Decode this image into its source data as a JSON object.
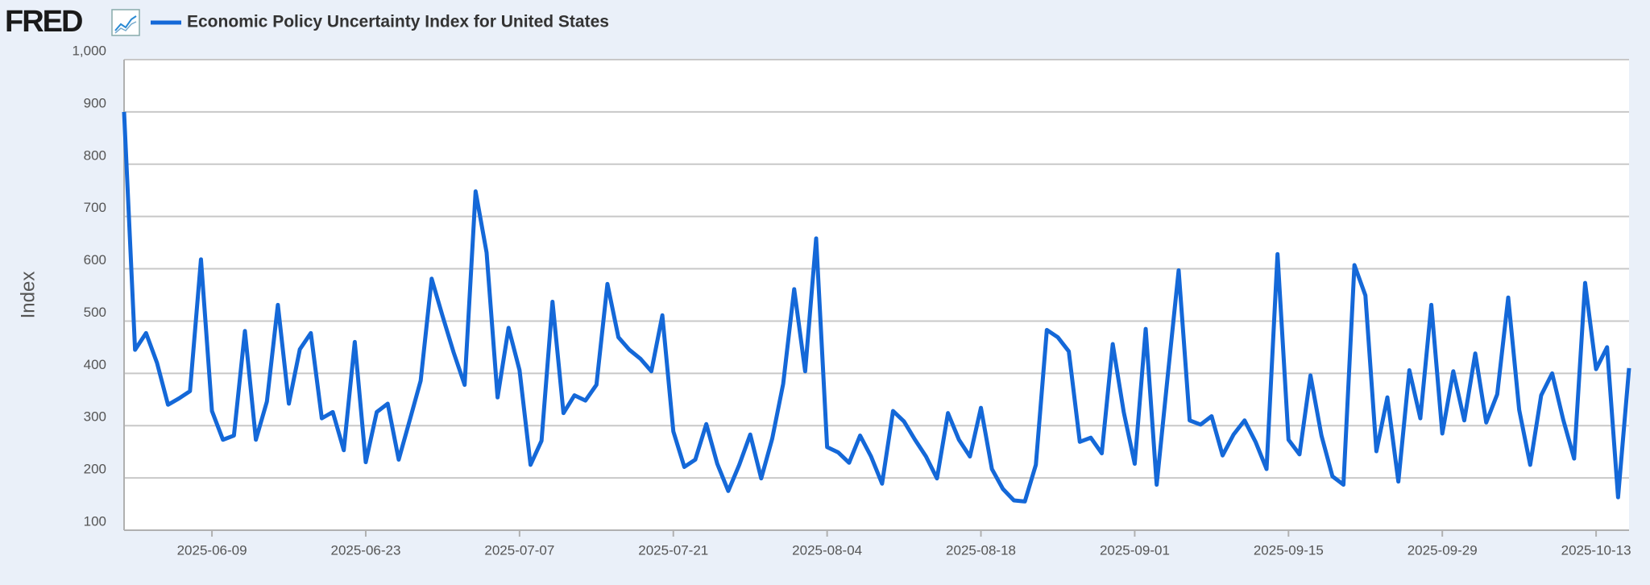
{
  "logo": "FRED",
  "chart_data": {
    "type": "line",
    "title": "Economic Policy Uncertainty Index for United States",
    "y_label": "Index",
    "x": [
      "2025-06-01",
      "2025-06-02",
      "2025-06-03",
      "2025-06-04",
      "2025-06-05",
      "2025-06-06",
      "2025-06-07",
      "2025-06-08",
      "2025-06-09",
      "2025-06-10",
      "2025-06-11",
      "2025-06-12",
      "2025-06-13",
      "2025-06-14",
      "2025-06-15",
      "2025-06-16",
      "2025-06-17",
      "2025-06-18",
      "2025-06-19",
      "2025-06-20",
      "2025-06-21",
      "2025-06-22",
      "2025-06-23",
      "2025-06-24",
      "2025-06-25",
      "2025-06-26",
      "2025-06-27",
      "2025-06-28",
      "2025-06-29",
      "2025-06-30",
      "2025-07-01",
      "2025-07-02",
      "2025-07-03",
      "2025-07-04",
      "2025-07-05",
      "2025-07-06",
      "2025-07-07",
      "2025-07-08",
      "2025-07-09",
      "2025-07-10",
      "2025-07-11",
      "2025-07-12",
      "2025-07-13",
      "2025-07-14",
      "2025-07-15",
      "2025-07-16",
      "2025-07-17",
      "2025-07-18",
      "2025-07-19",
      "2025-07-20",
      "2025-07-21",
      "2025-07-22",
      "2025-07-23",
      "2025-07-24",
      "2025-07-25",
      "2025-07-26",
      "2025-07-27",
      "2025-07-28",
      "2025-07-29",
      "2025-07-30",
      "2025-07-31",
      "2025-08-01",
      "2025-08-02",
      "2025-08-03",
      "2025-08-04",
      "2025-08-05",
      "2025-08-06",
      "2025-08-07",
      "2025-08-08",
      "2025-08-09",
      "2025-08-10",
      "2025-08-11",
      "2025-08-12",
      "2025-08-13",
      "2025-08-14",
      "2025-08-15",
      "2025-08-16",
      "2025-08-17",
      "2025-08-18",
      "2025-08-19",
      "2025-08-20",
      "2025-08-21",
      "2025-08-22",
      "2025-08-23",
      "2025-08-24",
      "2025-08-25",
      "2025-08-26",
      "2025-08-27",
      "2025-08-28",
      "2025-08-29",
      "2025-08-30",
      "2025-08-31",
      "2025-09-01",
      "2025-09-02",
      "2025-09-03",
      "2025-09-04",
      "2025-09-05",
      "2025-09-06",
      "2025-09-07",
      "2025-09-08",
      "2025-09-09",
      "2025-09-10",
      "2025-09-11",
      "2025-09-12",
      "2025-09-13",
      "2025-09-14",
      "2025-09-15",
      "2025-09-16",
      "2025-09-17",
      "2025-09-18",
      "2025-09-19",
      "2025-09-20",
      "2025-09-21",
      "2025-09-22",
      "2025-09-23",
      "2025-09-24",
      "2025-09-25",
      "2025-09-26",
      "2025-09-27",
      "2025-09-28",
      "2025-09-29",
      "2025-09-30",
      "2025-10-01",
      "2025-10-02",
      "2025-10-03",
      "2025-10-04",
      "2025-10-05",
      "2025-10-06",
      "2025-10-07",
      "2025-10-08",
      "2025-10-09",
      "2025-10-10",
      "2025-10-11",
      "2025-10-12",
      "2025-10-13",
      "2025-10-14",
      "2025-10-15",
      "2025-10-16"
    ],
    "series": [
      {
        "name": "Economic Policy Uncertainty Index for United States",
        "color": "#1468d8",
        "values": [
          900,
          445,
          477,
          420,
          340,
          352,
          366,
          618,
          328,
          273,
          281,
          481,
          273,
          346,
          531,
          342,
          446,
          477,
          314,
          326,
          253,
          460,
          230,
          326,
          342,
          235,
          310,
          386,
          581,
          509,
          440,
          378,
          748,
          631,
          354,
          487,
          406,
          225,
          271,
          537,
          324,
          358,
          348,
          378,
          571,
          469,
          445,
          428,
          404,
          511,
          289,
          221,
          235,
          303,
          227,
          175,
          225,
          283,
          199,
          275,
          380,
          561,
          404,
          658,
          259,
          249,
          229,
          281,
          241,
          189,
          328,
          308,
          273,
          241,
          199,
          324,
          273,
          241,
          334,
          217,
          179,
          157,
          155,
          225,
          483,
          469,
          442,
          269,
          277,
          247,
          456,
          326,
          227,
          485,
          187,
          394,
          597,
          310,
          302,
          318,
          243,
          283,
          310,
          269,
          217,
          628,
          273,
          245,
          396,
          281,
          203,
          187,
          607,
          549,
          251,
          354,
          193,
          406,
          314,
          531,
          285,
          404,
          310,
          438,
          306,
          360,
          545,
          330,
          225,
          358,
          400,
          312,
          237,
          573,
          408,
          450,
          163,
          410
        ]
      }
    ],
    "xlim": [
      "2025-06-01",
      "2025-10-16"
    ],
    "xticks": [
      "2025-06-09",
      "2025-06-23",
      "2025-07-07",
      "2025-07-21",
      "2025-08-04",
      "2025-08-18",
      "2025-09-01",
      "2025-09-15",
      "2025-09-29",
      "2025-10-13"
    ],
    "ylim": [
      100,
      1000
    ],
    "yticks": [
      100,
      200,
      300,
      400,
      500,
      600,
      700,
      800,
      900,
      {
        "value": 1000,
        "label": "1,000"
      }
    ],
    "grid": true
  }
}
